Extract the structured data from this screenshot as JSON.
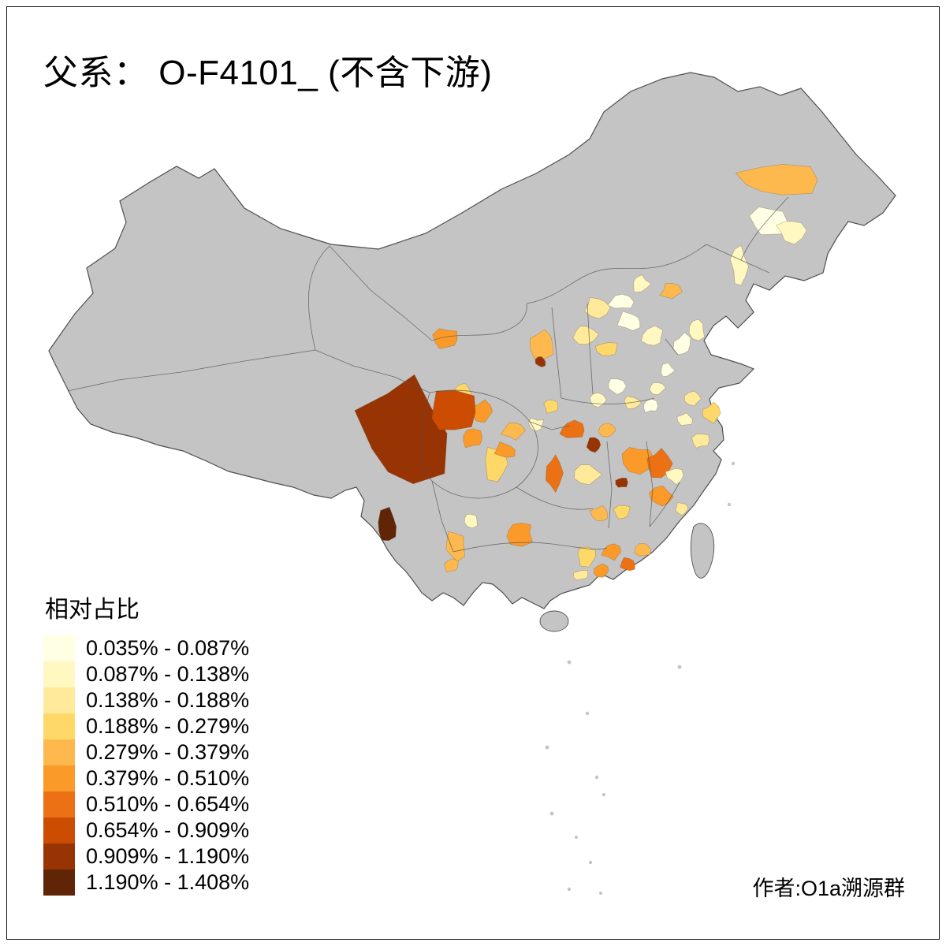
{
  "title": "父系： O-F4101_ (不含下游)",
  "legend": {
    "title": "相对占比",
    "bins": [
      {
        "label": "0.035% - 0.087%",
        "color": "#FFFFE3"
      },
      {
        "label": "0.087% - 0.138%",
        "color": "#FFF8C1"
      },
      {
        "label": "0.138% - 0.188%",
        "color": "#FEEA9A"
      },
      {
        "label": "0.188% - 0.279%",
        "color": "#FED868"
      },
      {
        "label": "0.279% - 0.379%",
        "color": "#FDB94D"
      },
      {
        "label": "0.379% - 0.510%",
        "color": "#FB9A29"
      },
      {
        "label": "0.510% - 0.654%",
        "color": "#EC7014"
      },
      {
        "label": "0.654% - 0.909%",
        "color": "#CC4C02"
      },
      {
        "label": "0.909% - 1.190%",
        "color": "#983404"
      },
      {
        "label": "1.190% - 1.408%",
        "color": "#5F2506"
      }
    ]
  },
  "credit": "作者:O1a溯源群",
  "map": {
    "no_data_color": "#C4C4C4",
    "border_color": "#4F4F4F",
    "background_color": "#FFFFFF"
  }
}
